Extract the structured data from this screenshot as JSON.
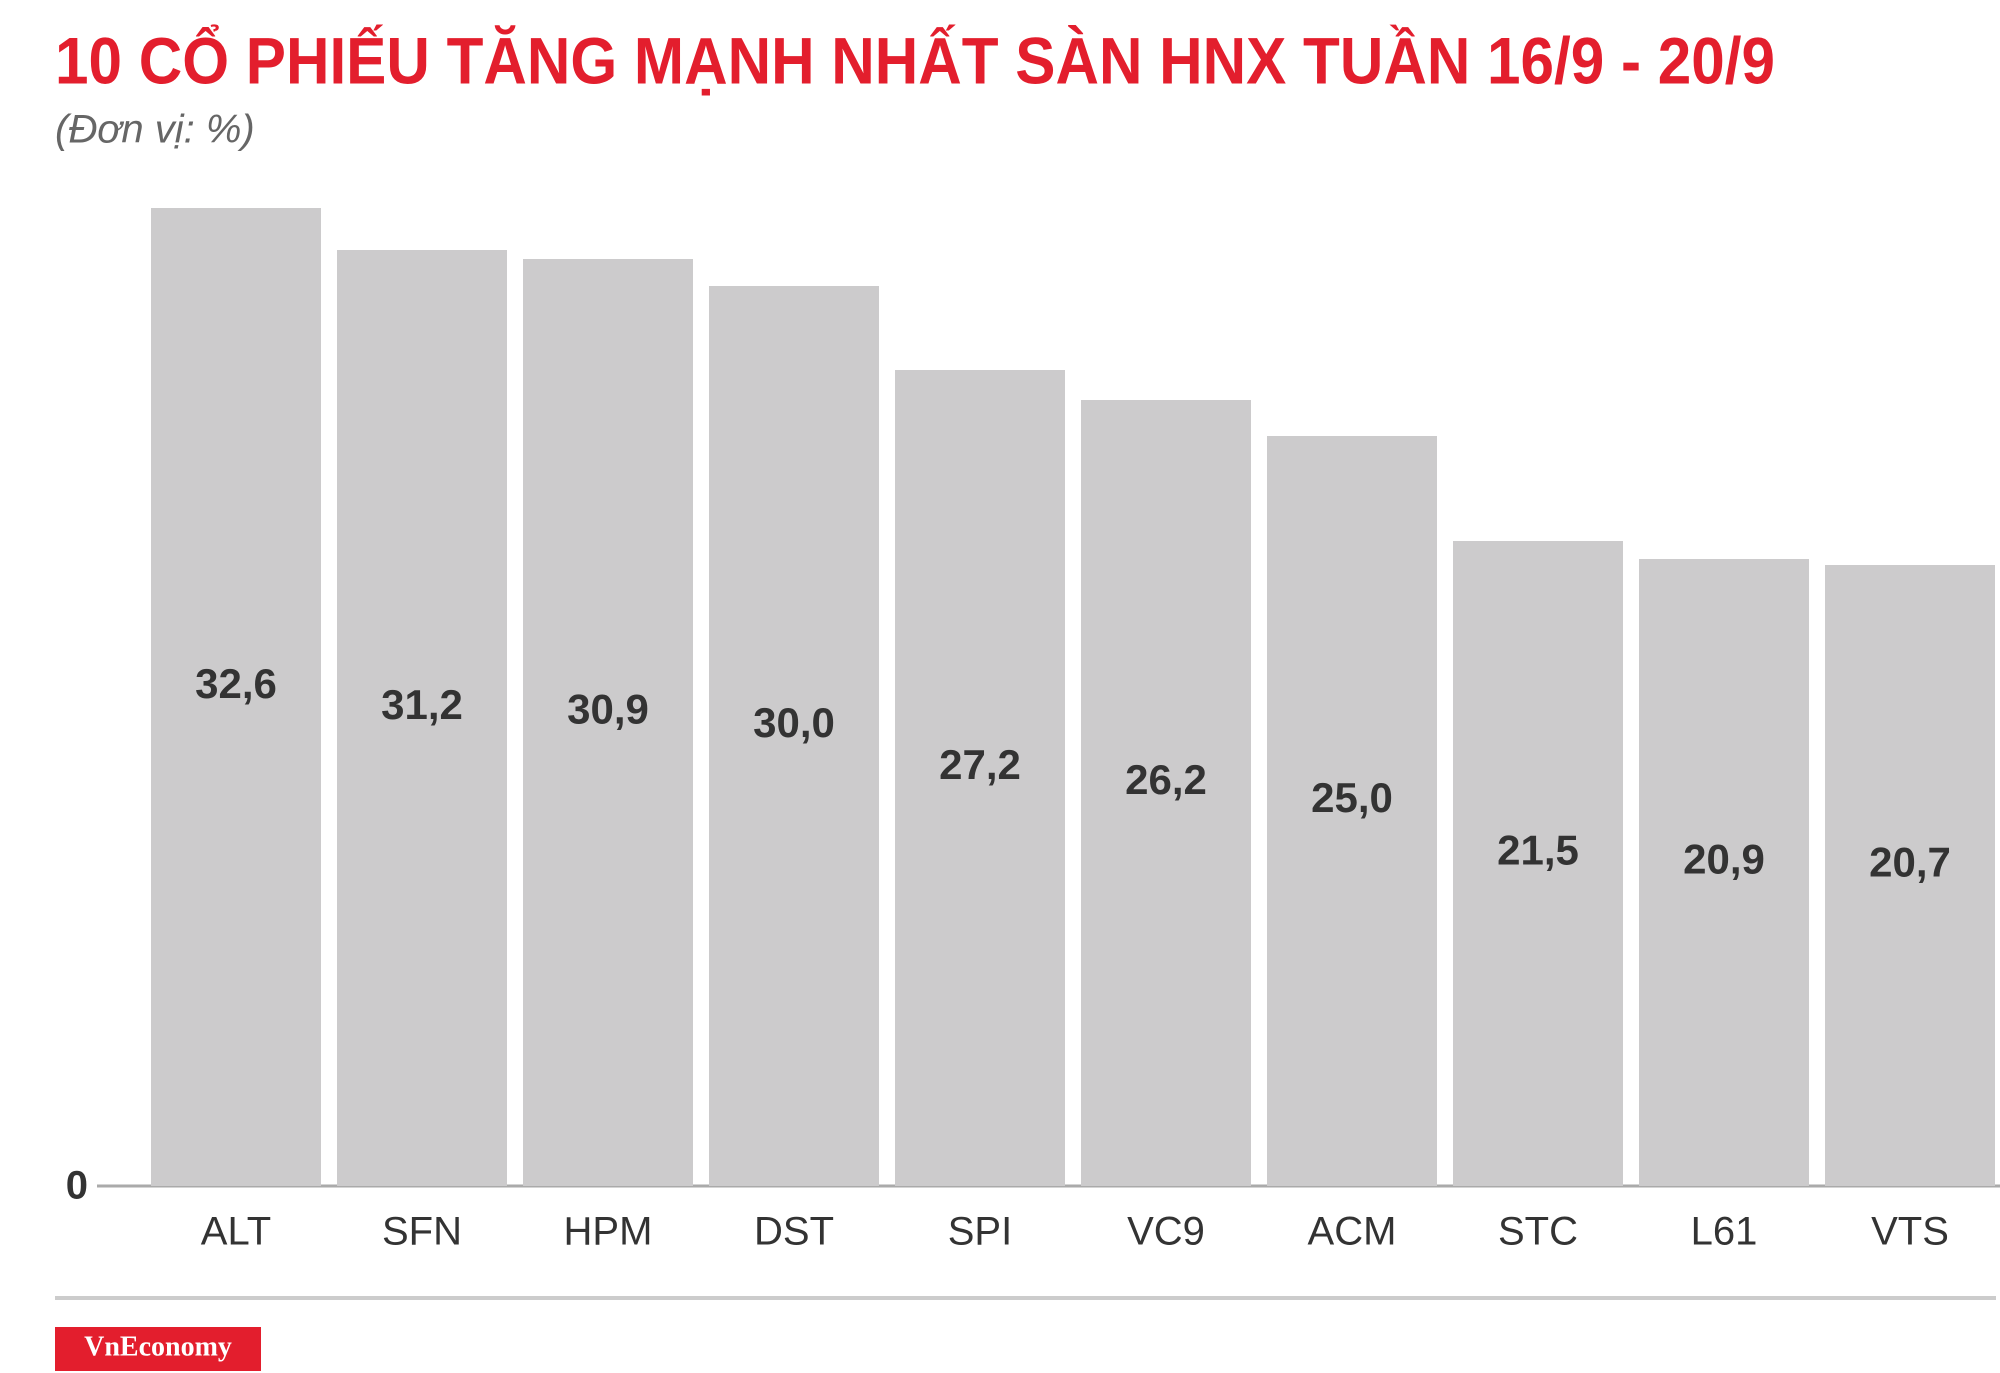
{
  "chart_data": {
    "type": "bar",
    "title": "10 CỔ PHIẾU TĂNG MẠNH NHẤT SÀN HNX TUẦN 16/9 - 20/9",
    "subtitle": "(Đơn vị: %)",
    "categories": [
      "ALT",
      "SFN",
      "HPM",
      "DST",
      "SPI",
      "VC9",
      "ACM",
      "STC",
      "L61",
      "VTS"
    ],
    "values": [
      32.6,
      31.2,
      30.9,
      30.0,
      27.2,
      26.2,
      25.0,
      21.5,
      20.9,
      20.7
    ],
    "value_labels": [
      "32,6",
      "31,2",
      "30,9",
      "30,0",
      "27,2",
      "26,2",
      "25,0",
      "21,5",
      "20,9",
      "20,7"
    ],
    "color": "#cccbcc",
    "ylim": [
      0,
      35
    ],
    "yticks": [
      0
    ],
    "grid": false
  },
  "logo": "VnEconomy"
}
